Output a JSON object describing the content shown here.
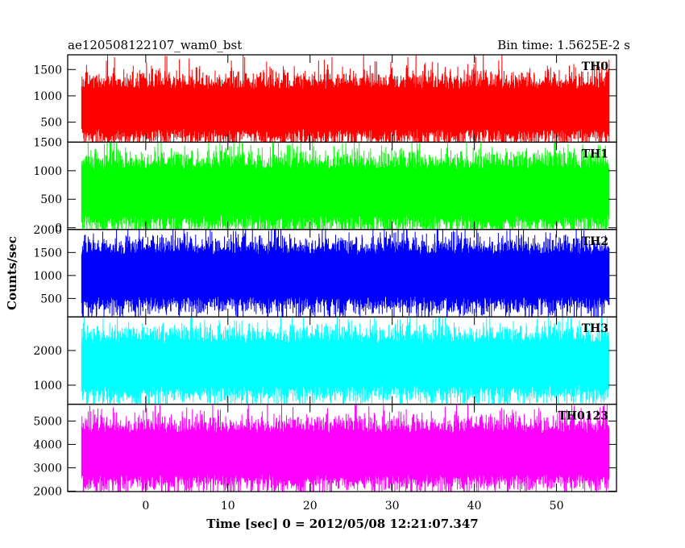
{
  "chart_data": {
    "type": "line",
    "title_left": "ae120508122107_wam0_bst",
    "title_right": "Bin time: 1.5625E-2 s",
    "xlabel": "Time [sec] 0 = 2012/05/08 12:21:07.347",
    "ylabel": "Counts/sec",
    "xlim": [
      -9.5,
      57.3
    ],
    "data_x_range": [
      -7.8,
      56.4
    ],
    "x_ticks": [
      0,
      10,
      20,
      30,
      40,
      50
    ],
    "x_tick_labels": [
      "0",
      "10",
      "20",
      "30",
      "40",
      "50"
    ],
    "grid": false,
    "legend": "none",
    "panels": [
      {
        "name": "TH0",
        "color": "#ff0000",
        "ylim": [
          120,
          1780
        ],
        "y_ticks": [
          500,
          1000,
          1500
        ],
        "y_tick_labels": [
          "500",
          "1000",
          "1500"
        ],
        "typical_range": [
          280,
          1280
        ],
        "peak_max": 1760,
        "mean": 750
      },
      {
        "name": "TH1",
        "color": "#00ff00",
        "ylim": [
          -30,
          1500
        ],
        "y_ticks": [
          0,
          500,
          1000,
          1500
        ],
        "y_tick_labels": [
          "0",
          "500",
          "1000",
          "1500"
        ],
        "typical_range": [
          100,
          1150
        ],
        "peak_max": 1470,
        "mean": 620
      },
      {
        "name": "TH2",
        "color": "#0000ff",
        "ylim": [
          100,
          2000
        ],
        "y_ticks": [
          500,
          1000,
          1500,
          2000
        ],
        "y_tick_labels": [
          "500",
          "1000",
          "1500",
          "2000"
        ],
        "typical_range": [
          420,
          1620
        ],
        "peak_max": 1990,
        "mean": 1000
      },
      {
        "name": "TH3",
        "color": "#00ffff",
        "ylim": [
          450,
          2970
        ],
        "y_ticks": [
          1000,
          2000
        ],
        "y_tick_labels": [
          "1000",
          "2000"
        ],
        "typical_range": [
          800,
          2400
        ],
        "peak_max": 2900,
        "mean": 1600
      },
      {
        "name": "TH0123",
        "color": "#ff00ff",
        "ylim": [
          1980,
          5720
        ],
        "y_ticks": [
          2000,
          3000,
          4000,
          5000
        ],
        "y_tick_labels": [
          "2000",
          "3000",
          "4000",
          "5000"
        ],
        "typical_range": [
          2400,
          4700
        ],
        "peak_max": 5720,
        "mean": 3600
      }
    ]
  }
}
